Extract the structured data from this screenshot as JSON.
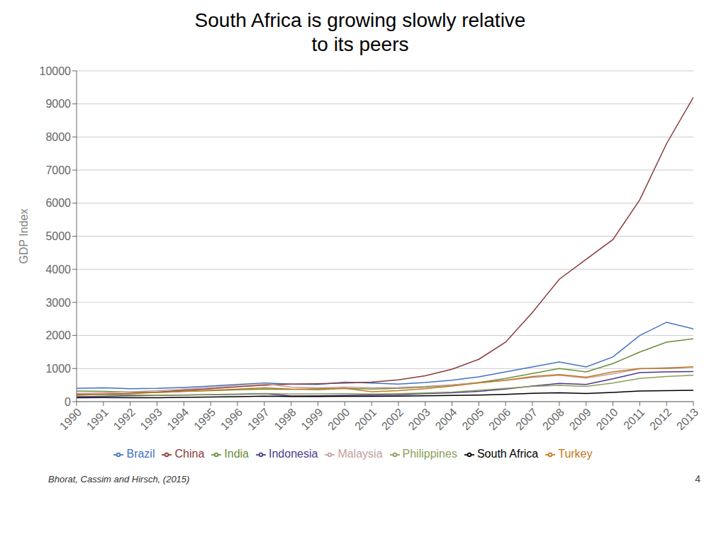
{
  "chart_data": {
    "type": "line",
    "title": "South Africa is growing slowly relative\nto its peers",
    "y_label": "GDP Index",
    "x": [
      1990,
      1991,
      1992,
      1993,
      1994,
      1995,
      1996,
      1997,
      1998,
      1999,
      2000,
      2001,
      2002,
      2003,
      2004,
      2005,
      2006,
      2007,
      2008,
      2009,
      2010,
      2011,
      2012,
      2013
    ],
    "xlim": [
      1990,
      2013
    ],
    "xticks": [
      1990,
      1991,
      1992,
      1993,
      1994,
      1995,
      1996,
      1997,
      1998,
      1999,
      2000,
      2001,
      2002,
      2003,
      2004,
      2005,
      2006,
      2007,
      2008,
      2009,
      2010,
      2011,
      2012,
      2013
    ],
    "ylim": [
      0,
      10000
    ],
    "yticks": [
      0,
      1000,
      2000,
      3000,
      4000,
      5000,
      6000,
      7000,
      8000,
      9000,
      10000
    ],
    "grid": true,
    "legend": "bottom",
    "series": [
      {
        "name": "Brazil",
        "color": "#4472C4",
        "values": [
          400,
          420,
          390,
          400,
          430,
          470,
          520,
          560,
          530,
          520,
          590,
          560,
          530,
          580,
          650,
          750,
          900,
          1050,
          1200,
          1050,
          1350,
          2000,
          2400,
          2200
        ]
      },
      {
        "name": "China",
        "color": "#8B3A3A",
        "values": [
          200,
          220,
          250,
          290,
          340,
          390,
          450,
          500,
          530,
          540,
          560,
          590,
          660,
          780,
          980,
          1280,
          1800,
          2700,
          3700,
          4300,
          4900,
          6100,
          7800,
          9200
        ]
      },
      {
        "name": "India",
        "color": "#6B8E3A",
        "values": [
          320,
          310,
          290,
          280,
          310,
          330,
          360,
          380,
          370,
          390,
          400,
          380,
          400,
          440,
          500,
          580,
          700,
          850,
          1000,
          900,
          1150,
          1500,
          1800,
          1900
        ]
      },
      {
        "name": "Indonesia",
        "color": "#4B3A8B",
        "values": [
          150,
          160,
          175,
          190,
          200,
          210,
          220,
          240,
          170,
          175,
          190,
          200,
          210,
          240,
          270,
          310,
          380,
          470,
          550,
          520,
          690,
          880,
          900,
          910
        ]
      },
      {
        "name": "Malaysia",
        "color": "#C4A0A0",
        "values": [
          250,
          265,
          295,
          330,
          380,
          430,
          490,
          540,
          440,
          420,
          440,
          420,
          430,
          460,
          510,
          570,
          640,
          730,
          800,
          710,
          840,
          990,
          1030,
          1050
        ]
      },
      {
        "name": "Philippines",
        "color": "#8B9E5A",
        "values": [
          220,
          210,
          205,
          195,
          205,
          215,
          230,
          245,
          230,
          235,
          240,
          230,
          240,
          260,
          290,
          340,
          400,
          460,
          490,
          460,
          560,
          700,
          760,
          800
        ]
      },
      {
        "name": "South Africa",
        "color": "#000000",
        "values": [
          120,
          125,
          120,
          120,
          130,
          140,
          150,
          165,
          155,
          155,
          160,
          160,
          165,
          175,
          185,
          200,
          220,
          250,
          270,
          245,
          280,
          320,
          330,
          340
        ]
      },
      {
        "name": "Turkey",
        "color": "#C47820",
        "values": [
          220,
          230,
          240,
          280,
          310,
          340,
          380,
          420,
          380,
          360,
          400,
          300,
          330,
          390,
          470,
          570,
          650,
          760,
          820,
          740,
          900,
          1000,
          1000,
          1050
        ]
      }
    ],
    "annotations": [
      "Bhorat, Cassim and Hirsch, (2015)",
      "4"
    ]
  }
}
